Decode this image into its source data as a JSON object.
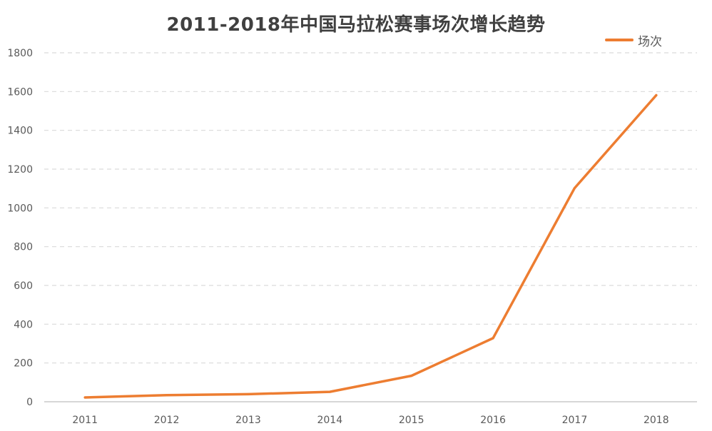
{
  "chart_data": {
    "type": "line",
    "title": "2011-2018年中国马拉松赛事场次增长趋势",
    "xlabel": "",
    "ylabel": "",
    "categories": [
      "2011",
      "2012",
      "2013",
      "2014",
      "2015",
      "2016",
      "2017",
      "2018"
    ],
    "series": [
      {
        "name": "场次",
        "values": [
          22,
          34,
          39,
          51,
          134,
          328,
          1102,
          1581
        ],
        "color": "#ED7D31"
      }
    ],
    "ylim": [
      0,
      1800
    ],
    "yticks": [
      "0",
      "200",
      "400",
      "600",
      "800",
      "1000",
      "1200",
      "1400",
      "1600",
      "1800"
    ],
    "grid": true,
    "grid_style": "dashed",
    "legend_position": "top-right"
  },
  "colors": {
    "line": "#ED7D31",
    "grid": "#D9D9D9",
    "axis": "#BFBFBF",
    "text": "#595959",
    "title": "#404040"
  }
}
